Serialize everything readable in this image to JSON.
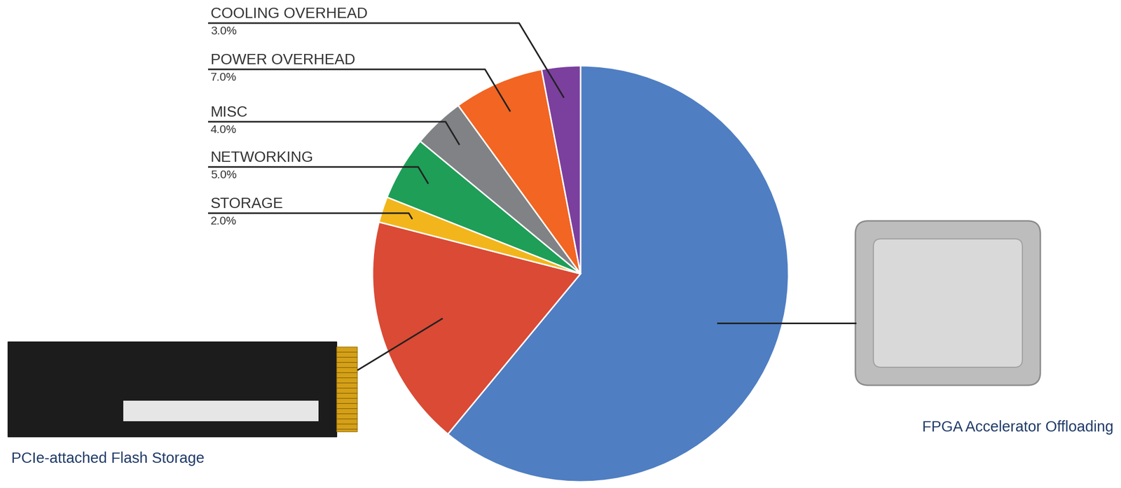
{
  "chart_data": {
    "type": "pie",
    "categories": [
      "FPGA Accelerator Offloading",
      "PCIe-attached Flash Storage",
      "STORAGE",
      "NETWORKING",
      "MISC",
      "POWER OVERHEAD",
      "COOLING OVERHEAD"
    ],
    "values": [
      61,
      18,
      2,
      5,
      4,
      7,
      3
    ],
    "value_labels": [
      null,
      null,
      "2.0%",
      "5.0%",
      "4.0%",
      "7.0%",
      "3.0%"
    ],
    "colors": [
      "#4f7ec2",
      "#da4a35",
      "#f2b61c",
      "#1e9e57",
      "#808285",
      "#f26522",
      "#7b3f9e"
    ]
  }
}
